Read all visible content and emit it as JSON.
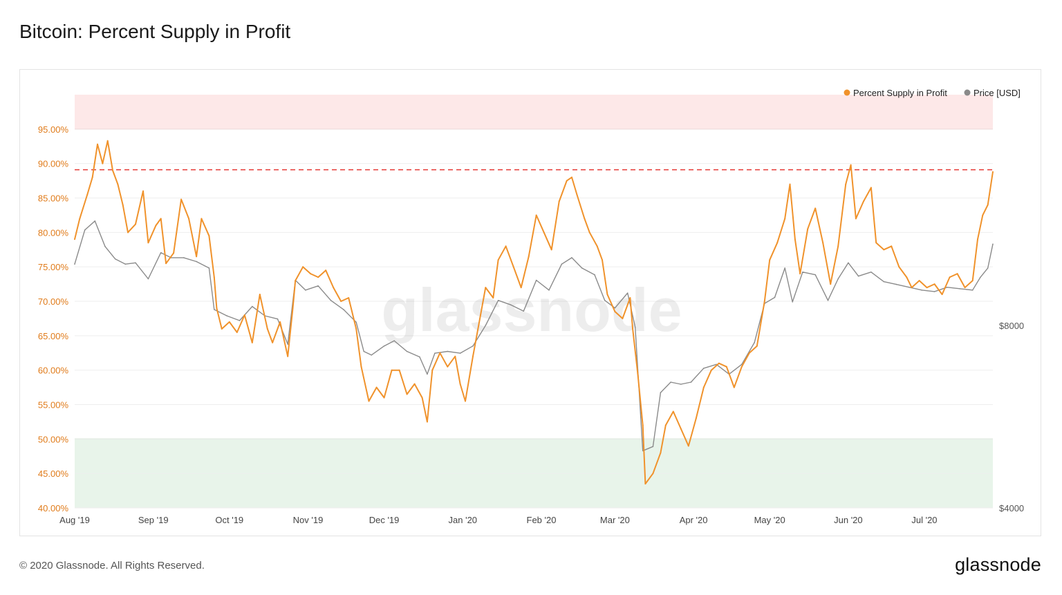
{
  "header": {
    "title": "Bitcoin: Percent Supply in Profit"
  },
  "footer": {
    "copyright": "© 2020 Glassnode. All Rights Reserved.",
    "brand": "glassnode"
  },
  "watermark": "glassnode",
  "colors": {
    "profit_line": "#f0922b",
    "price_line": "#8a8a8a",
    "upper_band": "#fde8e8",
    "upper_band_line": "#f2a1a1",
    "lower_band": "#e8f4ea",
    "lower_band_line": "#9fd0a8",
    "threshold_line": "#e53935",
    "left_tick": "#e07b1a",
    "right_tick": "#555555"
  },
  "chart_data": {
    "type": "line",
    "title": "",
    "legend": {
      "position": "top-right",
      "entries": [
        {
          "label": "Percent Supply in Profit",
          "color": "#f0922b"
        },
        {
          "label": "Price [USD]",
          "color": "#8a8a8a"
        }
      ]
    },
    "x_range": [
      "2019-08-01",
      "2020-07-28"
    ],
    "x_ticks": [
      {
        "date": "2019-08-01",
        "label": "Aug '19"
      },
      {
        "date": "2019-09-01",
        "label": "Sep '19"
      },
      {
        "date": "2019-10-01",
        "label": "Oct '19"
      },
      {
        "date": "2019-11-01",
        "label": "Nov '19"
      },
      {
        "date": "2019-12-01",
        "label": "Dec '19"
      },
      {
        "date": "2020-01-01",
        "label": "Jan '20"
      },
      {
        "date": "2020-02-01",
        "label": "Feb '20"
      },
      {
        "date": "2020-03-01",
        "label": "Mar '20"
      },
      {
        "date": "2020-04-01",
        "label": "Apr '20"
      },
      {
        "date": "2020-05-01",
        "label": "May '20"
      },
      {
        "date": "2020-06-01",
        "label": "Jun '20"
      },
      {
        "date": "2020-07-01",
        "label": "Jul '20"
      }
    ],
    "y_left": {
      "ylim": [
        40,
        100
      ],
      "ticks": [
        "40.00%",
        "45.00%",
        "50.00%",
        "55.00%",
        "60.00%",
        "65.00%",
        "70.00%",
        "75.00%",
        "80.00%",
        "85.00%",
        "90.00%",
        "95.00%"
      ],
      "tick_values": [
        40,
        45,
        50,
        55,
        60,
        65,
        70,
        75,
        80,
        85,
        90,
        95
      ]
    },
    "y_right": {
      "scale": "log",
      "ticks": [
        "$4000",
        "$8000"
      ],
      "tick_values": [
        4000,
        8000
      ]
    },
    "bands": [
      {
        "from": 95,
        "to": 100,
        "color": "#fde8e8",
        "edge": 95
      },
      {
        "from": 40,
        "to": 50,
        "color": "#e8f4ea",
        "edge": 50
      }
    ],
    "threshold": 89.1,
    "series": [
      {
        "name": "Percent Supply in Profit",
        "axis": "left",
        "points": [
          [
            "2019-08-01",
            79.0
          ],
          [
            "2019-08-03",
            82.0
          ],
          [
            "2019-08-06",
            85.5
          ],
          [
            "2019-08-08",
            88.0
          ],
          [
            "2019-08-10",
            92.8
          ],
          [
            "2019-08-12",
            90.0
          ],
          [
            "2019-08-14",
            93.3
          ],
          [
            "2019-08-16",
            89.0
          ],
          [
            "2019-08-18",
            87.0
          ],
          [
            "2019-08-20",
            84.0
          ],
          [
            "2019-08-22",
            80.0
          ],
          [
            "2019-08-25",
            81.2
          ],
          [
            "2019-08-28",
            86.0
          ],
          [
            "2019-08-30",
            78.5
          ],
          [
            "2019-09-02",
            81.0
          ],
          [
            "2019-09-04",
            82.0
          ],
          [
            "2019-09-06",
            75.5
          ],
          [
            "2019-09-09",
            77.0
          ],
          [
            "2019-09-12",
            84.8
          ],
          [
            "2019-09-15",
            82.0
          ],
          [
            "2019-09-18",
            76.5
          ],
          [
            "2019-09-20",
            82.0
          ],
          [
            "2019-09-23",
            79.5
          ],
          [
            "2019-09-25",
            73.5
          ],
          [
            "2019-09-26",
            69.0
          ],
          [
            "2019-09-28",
            66.0
          ],
          [
            "2019-10-01",
            67.0
          ],
          [
            "2019-10-04",
            65.5
          ],
          [
            "2019-10-07",
            68.0
          ],
          [
            "2019-10-10",
            64.0
          ],
          [
            "2019-10-13",
            71.0
          ],
          [
            "2019-10-16",
            66.0
          ],
          [
            "2019-10-18",
            64.0
          ],
          [
            "2019-10-21",
            67.0
          ],
          [
            "2019-10-24",
            62.0
          ],
          [
            "2019-10-26",
            69.0
          ],
          [
            "2019-10-27",
            73.0
          ],
          [
            "2019-10-30",
            75.0
          ],
          [
            "2019-11-02",
            74.0
          ],
          [
            "2019-11-05",
            73.5
          ],
          [
            "2019-11-08",
            74.5
          ],
          [
            "2019-11-11",
            72.0
          ],
          [
            "2019-11-14",
            70.0
          ],
          [
            "2019-11-17",
            70.5
          ],
          [
            "2019-11-20",
            66.0
          ],
          [
            "2019-11-22",
            60.5
          ],
          [
            "2019-11-25",
            55.5
          ],
          [
            "2019-11-28",
            57.5
          ],
          [
            "2019-12-01",
            56.0
          ],
          [
            "2019-12-04",
            60.0
          ],
          [
            "2019-12-07",
            60.0
          ],
          [
            "2019-12-10",
            56.5
          ],
          [
            "2019-12-13",
            58.0
          ],
          [
            "2019-12-16",
            56.0
          ],
          [
            "2019-12-18",
            52.5
          ],
          [
            "2019-12-20",
            60.0
          ],
          [
            "2019-12-23",
            62.5
          ],
          [
            "2019-12-26",
            60.5
          ],
          [
            "2019-12-29",
            62.0
          ],
          [
            "2019-12-31",
            58.0
          ],
          [
            "2020-01-02",
            55.5
          ],
          [
            "2020-01-05",
            62.0
          ],
          [
            "2020-01-08",
            68.0
          ],
          [
            "2020-01-10",
            72.0
          ],
          [
            "2020-01-13",
            70.5
          ],
          [
            "2020-01-15",
            76.0
          ],
          [
            "2020-01-18",
            78.0
          ],
          [
            "2020-01-21",
            75.0
          ],
          [
            "2020-01-24",
            72.0
          ],
          [
            "2020-01-27",
            76.5
          ],
          [
            "2020-01-30",
            82.5
          ],
          [
            "2020-02-02",
            80.0
          ],
          [
            "2020-02-05",
            77.5
          ],
          [
            "2020-02-08",
            84.5
          ],
          [
            "2020-02-11",
            87.5
          ],
          [
            "2020-02-13",
            88.0
          ],
          [
            "2020-02-15",
            85.5
          ],
          [
            "2020-02-18",
            82.0
          ],
          [
            "2020-02-20",
            80.0
          ],
          [
            "2020-02-23",
            78.0
          ],
          [
            "2020-02-25",
            76.0
          ],
          [
            "2020-02-27",
            71.0
          ],
          [
            "2020-03-01",
            68.5
          ],
          [
            "2020-03-04",
            67.5
          ],
          [
            "2020-03-07",
            70.5
          ],
          [
            "2020-03-08",
            66.0
          ],
          [
            "2020-03-10",
            59.5
          ],
          [
            "2020-03-12",
            52.0
          ],
          [
            "2020-03-13",
            43.5
          ],
          [
            "2020-03-16",
            45.0
          ],
          [
            "2020-03-19",
            48.0
          ],
          [
            "2020-03-21",
            52.0
          ],
          [
            "2020-03-24",
            54.0
          ],
          [
            "2020-03-27",
            51.5
          ],
          [
            "2020-03-30",
            49.0
          ],
          [
            "2020-04-02",
            53.0
          ],
          [
            "2020-04-05",
            57.5
          ],
          [
            "2020-04-08",
            60.0
          ],
          [
            "2020-04-11",
            61.0
          ],
          [
            "2020-04-14",
            60.5
          ],
          [
            "2020-04-17",
            57.5
          ],
          [
            "2020-04-20",
            60.5
          ],
          [
            "2020-04-23",
            62.5
          ],
          [
            "2020-04-26",
            63.5
          ],
          [
            "2020-04-29",
            70.0
          ],
          [
            "2020-05-01",
            76.0
          ],
          [
            "2020-05-04",
            78.5
          ],
          [
            "2020-05-07",
            82.0
          ],
          [
            "2020-05-09",
            87.0
          ],
          [
            "2020-05-11",
            79.0
          ],
          [
            "2020-05-13",
            74.0
          ],
          [
            "2020-05-16",
            80.5
          ],
          [
            "2020-05-19",
            83.5
          ],
          [
            "2020-05-22",
            78.5
          ],
          [
            "2020-05-25",
            72.5
          ],
          [
            "2020-05-28",
            78.0
          ],
          [
            "2020-05-31",
            87.0
          ],
          [
            "2020-06-02",
            89.8
          ],
          [
            "2020-06-04",
            82.0
          ],
          [
            "2020-06-07",
            84.5
          ],
          [
            "2020-06-10",
            86.5
          ],
          [
            "2020-06-12",
            78.5
          ],
          [
            "2020-06-15",
            77.5
          ],
          [
            "2020-06-18",
            78.0
          ],
          [
            "2020-06-21",
            75.0
          ],
          [
            "2020-06-24",
            73.5
          ],
          [
            "2020-06-26",
            72.0
          ],
          [
            "2020-06-29",
            73.0
          ],
          [
            "2020-07-02",
            72.0
          ],
          [
            "2020-07-05",
            72.5
          ],
          [
            "2020-07-08",
            71.0
          ],
          [
            "2020-07-11",
            73.5
          ],
          [
            "2020-07-14",
            74.0
          ],
          [
            "2020-07-17",
            72.0
          ],
          [
            "2020-07-20",
            73.0
          ],
          [
            "2020-07-22",
            79.0
          ],
          [
            "2020-07-24",
            82.5
          ],
          [
            "2020-07-26",
            84.0
          ],
          [
            "2020-07-28",
            88.8
          ]
        ]
      },
      {
        "name": "Price [USD]",
        "axis": "right",
        "points": [
          [
            "2019-08-01",
            10100
          ],
          [
            "2019-08-05",
            11500
          ],
          [
            "2019-08-09",
            11900
          ],
          [
            "2019-08-13",
            10800
          ],
          [
            "2019-08-17",
            10300
          ],
          [
            "2019-08-21",
            10100
          ],
          [
            "2019-08-25",
            10150
          ],
          [
            "2019-08-30",
            9550
          ],
          [
            "2019-09-04",
            10550
          ],
          [
            "2019-09-08",
            10350
          ],
          [
            "2019-09-13",
            10350
          ],
          [
            "2019-09-18",
            10200
          ],
          [
            "2019-09-23",
            9950
          ],
          [
            "2019-09-25",
            8500
          ],
          [
            "2019-09-30",
            8300
          ],
          [
            "2019-10-05",
            8150
          ],
          [
            "2019-10-10",
            8600
          ],
          [
            "2019-10-15",
            8300
          ],
          [
            "2019-10-20",
            8200
          ],
          [
            "2019-10-24",
            7450
          ],
          [
            "2019-10-27",
            9500
          ],
          [
            "2019-10-31",
            9150
          ],
          [
            "2019-11-05",
            9300
          ],
          [
            "2019-11-10",
            8800
          ],
          [
            "2019-11-15",
            8500
          ],
          [
            "2019-11-20",
            8100
          ],
          [
            "2019-11-23",
            7250
          ],
          [
            "2019-11-26",
            7150
          ],
          [
            "2019-12-01",
            7400
          ],
          [
            "2019-12-05",
            7550
          ],
          [
            "2019-12-10",
            7250
          ],
          [
            "2019-12-15",
            7100
          ],
          [
            "2019-12-18",
            6650
          ],
          [
            "2019-12-21",
            7200
          ],
          [
            "2019-12-26",
            7250
          ],
          [
            "2019-12-31",
            7200
          ],
          [
            "2020-01-05",
            7400
          ],
          [
            "2020-01-10",
            8000
          ],
          [
            "2020-01-15",
            8800
          ],
          [
            "2020-01-20",
            8650
          ],
          [
            "2020-01-25",
            8450
          ],
          [
            "2020-01-30",
            9500
          ],
          [
            "2020-02-04",
            9150
          ],
          [
            "2020-02-09",
            10100
          ],
          [
            "2020-02-13",
            10350
          ],
          [
            "2020-02-17",
            9950
          ],
          [
            "2020-02-22",
            9700
          ],
          [
            "2020-02-26",
            8800
          ],
          [
            "2020-03-01",
            8550
          ],
          [
            "2020-03-06",
            9050
          ],
          [
            "2020-03-09",
            7950
          ],
          [
            "2020-03-12",
            4970
          ],
          [
            "2020-03-16",
            5050
          ],
          [
            "2020-03-19",
            6200
          ],
          [
            "2020-03-23",
            6450
          ],
          [
            "2020-03-27",
            6400
          ],
          [
            "2020-03-31",
            6450
          ],
          [
            "2020-04-05",
            6800
          ],
          [
            "2020-04-10",
            6900
          ],
          [
            "2020-04-15",
            6650
          ],
          [
            "2020-04-20",
            6900
          ],
          [
            "2020-04-25",
            7500
          ],
          [
            "2020-04-29",
            8700
          ],
          [
            "2020-05-03",
            8900
          ],
          [
            "2020-05-07",
            9950
          ],
          [
            "2020-05-10",
            8750
          ],
          [
            "2020-05-14",
            9800
          ],
          [
            "2020-05-19",
            9700
          ],
          [
            "2020-05-24",
            8800
          ],
          [
            "2020-05-28",
            9550
          ],
          [
            "2020-06-01",
            10150
          ],
          [
            "2020-06-05",
            9650
          ],
          [
            "2020-06-10",
            9800
          ],
          [
            "2020-06-15",
            9450
          ],
          [
            "2020-06-20",
            9350
          ],
          [
            "2020-06-25",
            9250
          ],
          [
            "2020-06-30",
            9150
          ],
          [
            "2020-07-05",
            9100
          ],
          [
            "2020-07-10",
            9250
          ],
          [
            "2020-07-15",
            9200
          ],
          [
            "2020-07-20",
            9150
          ],
          [
            "2020-07-23",
            9600
          ],
          [
            "2020-07-26",
            9950
          ],
          [
            "2020-07-28",
            10900
          ]
        ]
      }
    ]
  }
}
